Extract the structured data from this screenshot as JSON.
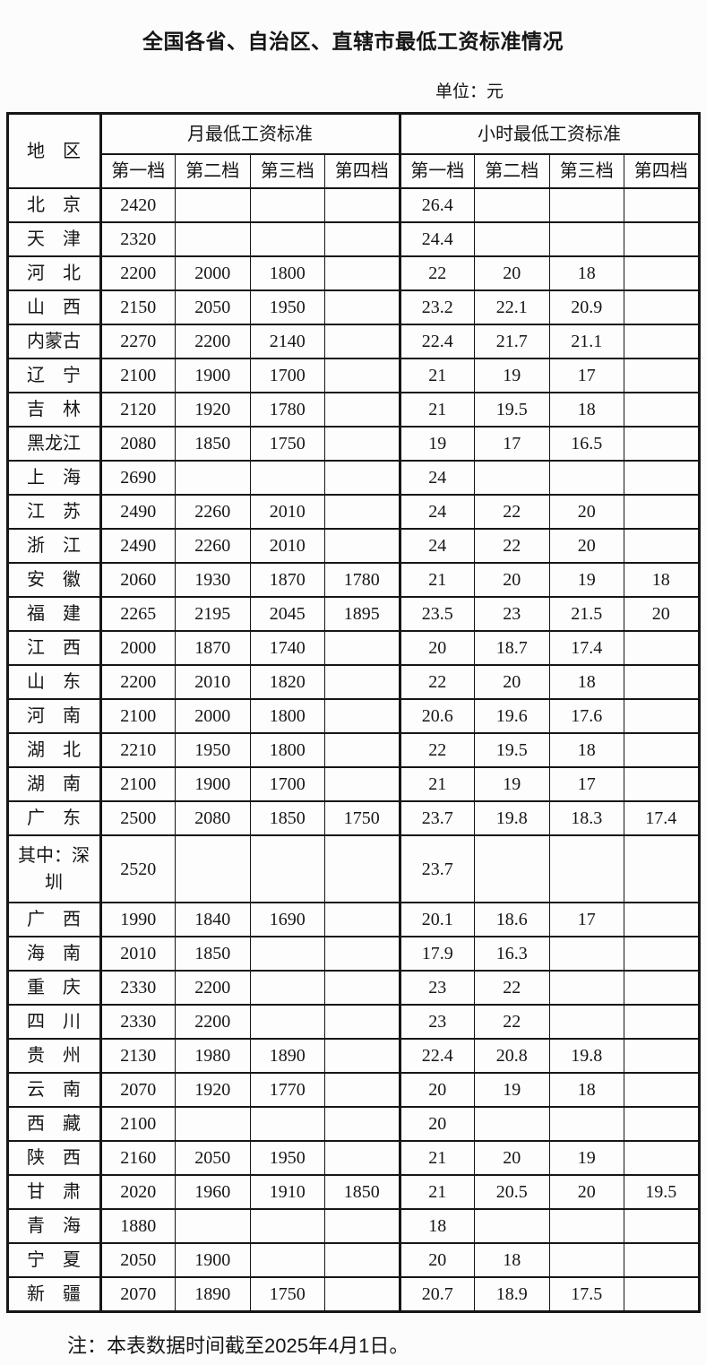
{
  "title": "全国各省、自治区、直辖市最低工资标准情况",
  "unit_label": "单位：元",
  "colors": {
    "ink": "#161616",
    "background": "#fcfcfc",
    "table_border": "#161616"
  },
  "table": {
    "region_header": "地　区",
    "groups": [
      "月最低工资标准",
      "小时最低工资标准"
    ],
    "tiers": [
      "第一档",
      "第二档",
      "第三档",
      "第四档"
    ],
    "rows": [
      {
        "region": "北　京",
        "monthly": [
          "2420",
          "",
          "",
          ""
        ],
        "hourly": [
          "26.4",
          "",
          "",
          ""
        ]
      },
      {
        "region": "天　津",
        "monthly": [
          "2320",
          "",
          "",
          ""
        ],
        "hourly": [
          "24.4",
          "",
          "",
          ""
        ]
      },
      {
        "region": "河　北",
        "monthly": [
          "2200",
          "2000",
          "1800",
          ""
        ],
        "hourly": [
          "22",
          "20",
          "18",
          ""
        ]
      },
      {
        "region": "山　西",
        "monthly": [
          "2150",
          "2050",
          "1950",
          ""
        ],
        "hourly": [
          "23.2",
          "22.1",
          "20.9",
          ""
        ]
      },
      {
        "region": "内蒙古",
        "monthly": [
          "2270",
          "2200",
          "2140",
          ""
        ],
        "hourly": [
          "22.4",
          "21.7",
          "21.1",
          ""
        ]
      },
      {
        "region": "辽　宁",
        "monthly": [
          "2100",
          "1900",
          "1700",
          ""
        ],
        "hourly": [
          "21",
          "19",
          "17",
          ""
        ]
      },
      {
        "region": "吉　林",
        "monthly": [
          "2120",
          "1920",
          "1780",
          ""
        ],
        "hourly": [
          "21",
          "19.5",
          "18",
          ""
        ]
      },
      {
        "region": "黑龙江",
        "monthly": [
          "2080",
          "1850",
          "1750",
          ""
        ],
        "hourly": [
          "19",
          "17",
          "16.5",
          ""
        ]
      },
      {
        "region": "上　海",
        "monthly": [
          "2690",
          "",
          "",
          ""
        ],
        "hourly": [
          "24",
          "",
          "",
          ""
        ]
      },
      {
        "region": "江　苏",
        "monthly": [
          "2490",
          "2260",
          "2010",
          ""
        ],
        "hourly": [
          "24",
          "22",
          "20",
          ""
        ]
      },
      {
        "region": "浙　江",
        "monthly": [
          "2490",
          "2260",
          "2010",
          ""
        ],
        "hourly": [
          "24",
          "22",
          "20",
          ""
        ]
      },
      {
        "region": "安　徽",
        "monthly": [
          "2060",
          "1930",
          "1870",
          "1780"
        ],
        "hourly": [
          "21",
          "20",
          "19",
          "18"
        ]
      },
      {
        "region": "福　建",
        "monthly": [
          "2265",
          "2195",
          "2045",
          "1895"
        ],
        "hourly": [
          "23.5",
          "23",
          "21.5",
          "20"
        ]
      },
      {
        "region": "江　西",
        "monthly": [
          "2000",
          "1870",
          "1740",
          ""
        ],
        "hourly": [
          "20",
          "18.7",
          "17.4",
          ""
        ]
      },
      {
        "region": "山　东",
        "monthly": [
          "2200",
          "2010",
          "1820",
          ""
        ],
        "hourly": [
          "22",
          "20",
          "18",
          ""
        ]
      },
      {
        "region": "河　南",
        "monthly": [
          "2100",
          "2000",
          "1800",
          ""
        ],
        "hourly": [
          "20.6",
          "19.6",
          "17.6",
          ""
        ]
      },
      {
        "region": "湖　北",
        "monthly": [
          "2210",
          "1950",
          "1800",
          ""
        ],
        "hourly": [
          "22",
          "19.5",
          "18",
          ""
        ]
      },
      {
        "region": "湖　南",
        "monthly": [
          "2100",
          "1900",
          "1700",
          ""
        ],
        "hourly": [
          "21",
          "19",
          "17",
          ""
        ]
      },
      {
        "region": "广　东",
        "monthly": [
          "2500",
          "2080",
          "1850",
          "1750"
        ],
        "hourly": [
          "23.7",
          "19.8",
          "18.3",
          "17.4"
        ]
      },
      {
        "region": "其中：深圳",
        "monthly": [
          "2520",
          "",
          "",
          ""
        ],
        "hourly": [
          "23.7",
          "",
          "",
          ""
        ]
      },
      {
        "region": "广　西",
        "monthly": [
          "1990",
          "1840",
          "1690",
          ""
        ],
        "hourly": [
          "20.1",
          "18.6",
          "17",
          ""
        ]
      },
      {
        "region": "海　南",
        "monthly": [
          "2010",
          "1850",
          "",
          ""
        ],
        "hourly": [
          "17.9",
          "16.3",
          "",
          ""
        ]
      },
      {
        "region": "重　庆",
        "monthly": [
          "2330",
          "2200",
          "",
          ""
        ],
        "hourly": [
          "23",
          "22",
          "",
          ""
        ]
      },
      {
        "region": "四　川",
        "monthly": [
          "2330",
          "2200",
          "",
          ""
        ],
        "hourly": [
          "23",
          "22",
          "",
          ""
        ]
      },
      {
        "region": "贵　州",
        "monthly": [
          "2130",
          "1980",
          "1890",
          ""
        ],
        "hourly": [
          "22.4",
          "20.8",
          "19.8",
          ""
        ]
      },
      {
        "region": "云　南",
        "monthly": [
          "2070",
          "1920",
          "1770",
          ""
        ],
        "hourly": [
          "20",
          "19",
          "18",
          ""
        ]
      },
      {
        "region": "西　藏",
        "monthly": [
          "2100",
          "",
          "",
          ""
        ],
        "hourly": [
          "20",
          "",
          "",
          ""
        ]
      },
      {
        "region": "陕　西",
        "monthly": [
          "2160",
          "2050",
          "1950",
          ""
        ],
        "hourly": [
          "21",
          "20",
          "19",
          ""
        ]
      },
      {
        "region": "甘　肃",
        "monthly": [
          "2020",
          "1960",
          "1910",
          "1850"
        ],
        "hourly": [
          "21",
          "20.5",
          "20",
          "19.5"
        ]
      },
      {
        "region": "青　海",
        "monthly": [
          "1880",
          "",
          "",
          ""
        ],
        "hourly": [
          "18",
          "",
          "",
          ""
        ]
      },
      {
        "region": "宁　夏",
        "monthly": [
          "2050",
          "1900",
          "",
          ""
        ],
        "hourly": [
          "20",
          "18",
          "",
          ""
        ]
      },
      {
        "region": "新　疆",
        "monthly": [
          "2070",
          "1890",
          "1750",
          ""
        ],
        "hourly": [
          "20.7",
          "18.9",
          "17.5",
          ""
        ]
      }
    ]
  },
  "note": "注：本表数据时间截至2025年4月1日。"
}
